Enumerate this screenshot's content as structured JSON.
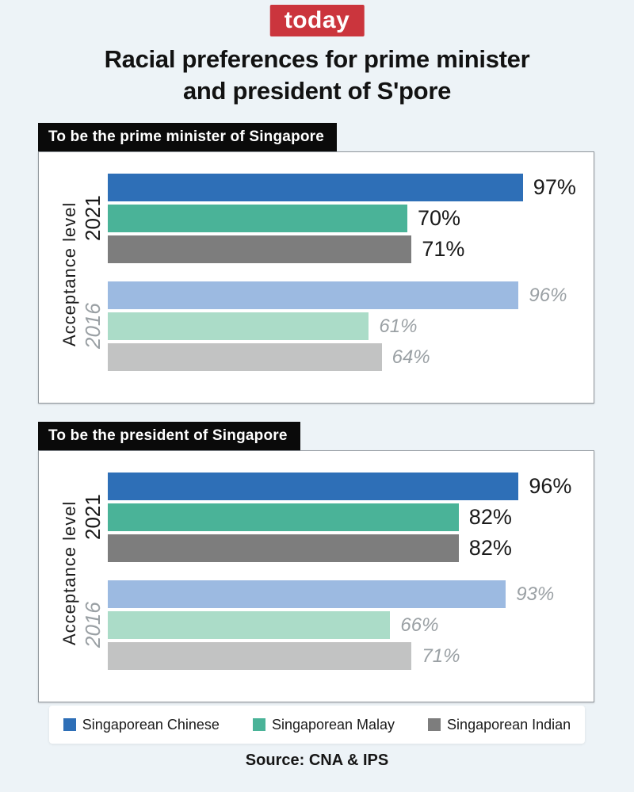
{
  "header": {
    "logo_text": "today",
    "title_line1": "Racial preferences for prime minister",
    "title_line2": "and president of S'pore"
  },
  "footer": {
    "source": "Source: CNA & IPS"
  },
  "legend": {
    "items": [
      {
        "label": "Singaporean Chinese",
        "color": "#2e6fb7"
      },
      {
        "label": "Singaporean Malay",
        "color": "#4ab398"
      },
      {
        "label": "Singaporean Indian",
        "color": "#7d7d7d"
      }
    ]
  },
  "colors": {
    "page_background": "#edf3f7",
    "logo_red": "#cb353d",
    "banner_background": "#0a0a0a",
    "banner_text": "#ffffff",
    "bars_2021": [
      "#2e6fb7",
      "#4ab398",
      "#7d7d7d"
    ],
    "bars_2016": [
      "#9cbae1",
      "#abdcc8",
      "#c2c3c3"
    ],
    "value_label_2021": "#1a1a1a",
    "value_label_2016": "#9aa0a4"
  },
  "chart_data": [
    {
      "type": "bar",
      "orientation": "horizontal",
      "title": "To be the prime minister of Singapore",
      "axis_label": "Acceptance level",
      "unit": "%",
      "xlim": [
        0,
        100
      ],
      "grid": false,
      "legend_position": "bottom",
      "categories": [
        "Singaporean Chinese",
        "Singaporean Malay",
        "Singaporean Indian"
      ],
      "groups": [
        {
          "name": "2021",
          "values": [
            97,
            70,
            71
          ]
        },
        {
          "name": "2016",
          "values": [
            96,
            61,
            64
          ]
        }
      ]
    },
    {
      "type": "bar",
      "orientation": "horizontal",
      "title": "To be the president of Singapore",
      "axis_label": "Acceptance level",
      "unit": "%",
      "xlim": [
        0,
        100
      ],
      "grid": false,
      "legend_position": "bottom",
      "categories": [
        "Singaporean Chinese",
        "Singaporean Malay",
        "Singaporean Indian"
      ],
      "groups": [
        {
          "name": "2021",
          "values": [
            96,
            82,
            82
          ]
        },
        {
          "name": "2016",
          "values": [
            93,
            66,
            71
          ]
        }
      ]
    }
  ]
}
